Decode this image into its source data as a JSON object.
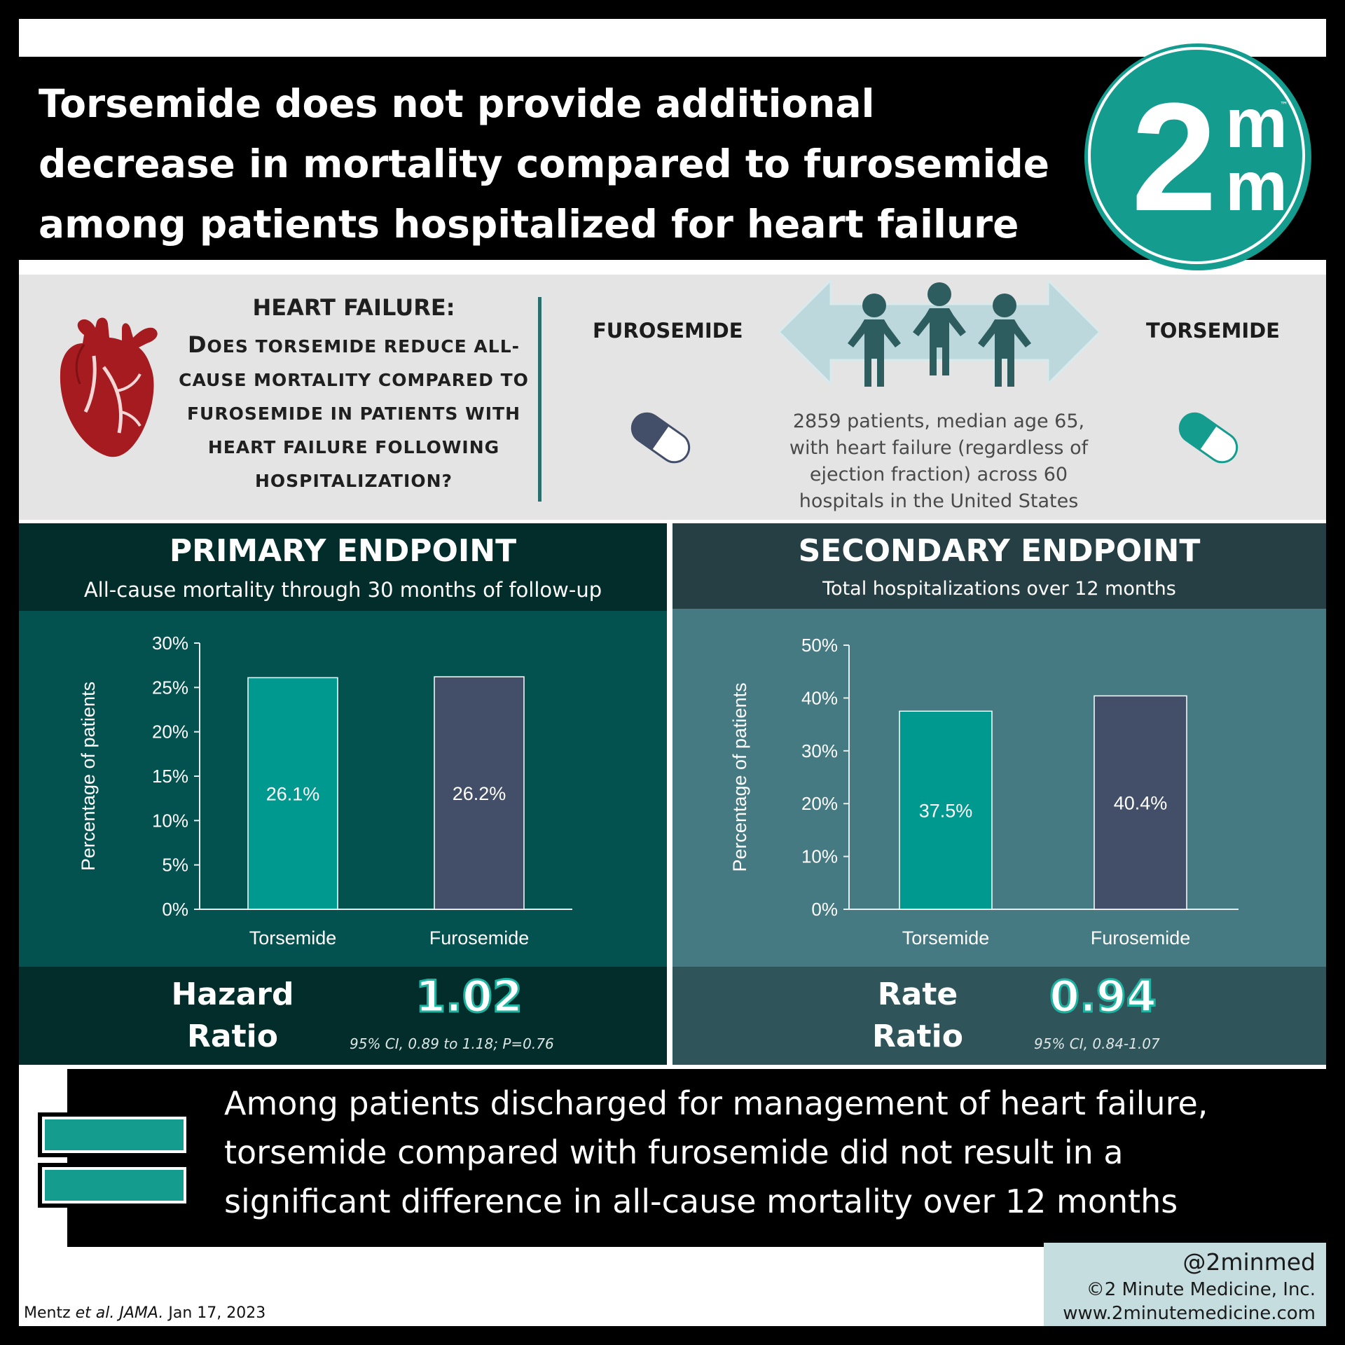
{
  "title": "Torsemide does not provide additional decrease in mortality compared to furosemide among patients hospitalized for heart failure",
  "logo": {
    "number": "2",
    "letters": [
      "m",
      "m"
    ],
    "tm": "™"
  },
  "question": {
    "heading": "HEART FAILURE:",
    "body": "Does torsemide reduce all-cause mortality compared to furosemide in patients with heart failure following hospitalization?"
  },
  "arms": {
    "left": "FUROSEMIDE",
    "right": "TORSEMIDE"
  },
  "population": "2859 patients, median age 65, with heart failure (regardless of ejection fraction) across 60 hospitals in the United States",
  "icons": [
    "heart-icon",
    "people-icon",
    "arrow-icon",
    "pill-icon"
  ],
  "colors": {
    "teal": "#149c8f",
    "navy": "#434f69",
    "heart": "#a51b1f",
    "dark_teal": "#045250",
    "primary_header": "#022d2b",
    "secondary_body": "#457a82",
    "secondary_header": "#253f44"
  },
  "primary": {
    "title": "PRIMARY ENDPOINT",
    "subtitle": "All-cause mortality through 30 months of follow-up",
    "ratio_label_1": "Hazard",
    "ratio_label_2": "Ratio",
    "ratio_value": "1.02",
    "ci": "95% CI, 0.89 to 1.18; P=0.76"
  },
  "secondary": {
    "title": "SECONDARY ENDPOINT",
    "subtitle": "Total hospitalizations over 12 months",
    "ratio_label_1": "Rate",
    "ratio_label_2": "Ratio",
    "ratio_value": "0.94",
    "ci": "95% CI, 0.84-1.07"
  },
  "chart_data": [
    {
      "type": "bar",
      "categories": [
        "Torsemide",
        "Furosemide"
      ],
      "values": [
        26.1,
        26.2
      ],
      "value_labels": [
        "26.1%",
        "26.2%"
      ],
      "ylabel": "Percentage of patients",
      "ylim": [
        0,
        30
      ],
      "yticks": [
        "0%",
        "5%",
        "10%",
        "15%",
        "20%",
        "25%",
        "30%"
      ],
      "tick_step": 5,
      "colors": [
        "#00998f",
        "#434f69"
      ]
    },
    {
      "type": "bar",
      "categories": [
        "Torsemide",
        "Furosemide"
      ],
      "values": [
        37.5,
        40.4
      ],
      "value_labels": [
        "37.5%",
        "40.4%"
      ],
      "ylabel": "Percentage of patients",
      "ylim": [
        0,
        50
      ],
      "yticks": [
        "0%",
        "10%",
        "20%",
        "30%",
        "40%",
        "50%"
      ],
      "tick_step": 10,
      "colors": [
        "#00998f",
        "#434f69"
      ]
    }
  ],
  "conclusion": "Among patients discharged for management of heart failure, torsemide compared with furosemide did not result in a significant difference in all-cause mortality over 12 months",
  "footer": {
    "handle": "@2minmed",
    "copyright": "©2 Minute Medicine, Inc.",
    "url": "www.2minutemedicine.com"
  },
  "citation": {
    "authors": "Mentz",
    "etal": "et al.",
    "journal": "JAMA.",
    "date": "Jan 17, 2023"
  }
}
